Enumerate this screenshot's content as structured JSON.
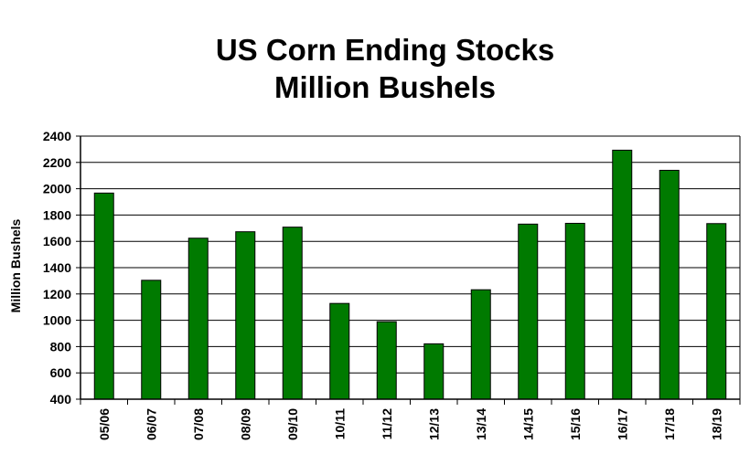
{
  "chart_data": {
    "type": "bar",
    "title": "US Corn Ending Stocks",
    "subtitle": "Million Bushels",
    "xlabel": "",
    "ylabel": "Million Bushels",
    "ylim": [
      400,
      2400
    ],
    "yticks": [
      400,
      600,
      800,
      1000,
      1200,
      1400,
      1600,
      1800,
      2000,
      2200,
      2400
    ],
    "grid": true,
    "legend": "none",
    "categories": [
      "05/06",
      "06/07",
      "07/08",
      "08/09",
      "09/10",
      "10/11",
      "11/12",
      "12/13",
      "13/14",
      "14/15",
      "15/16",
      "16/17",
      "17/18",
      "18/19"
    ],
    "series": [
      {
        "values": [
          1967,
          1304,
          1624,
          1673,
          1708,
          1128,
          989,
          821,
          1232,
          1731,
          1737,
          2293,
          2140,
          1735
        ],
        "color": "#007a00"
      }
    ]
  }
}
